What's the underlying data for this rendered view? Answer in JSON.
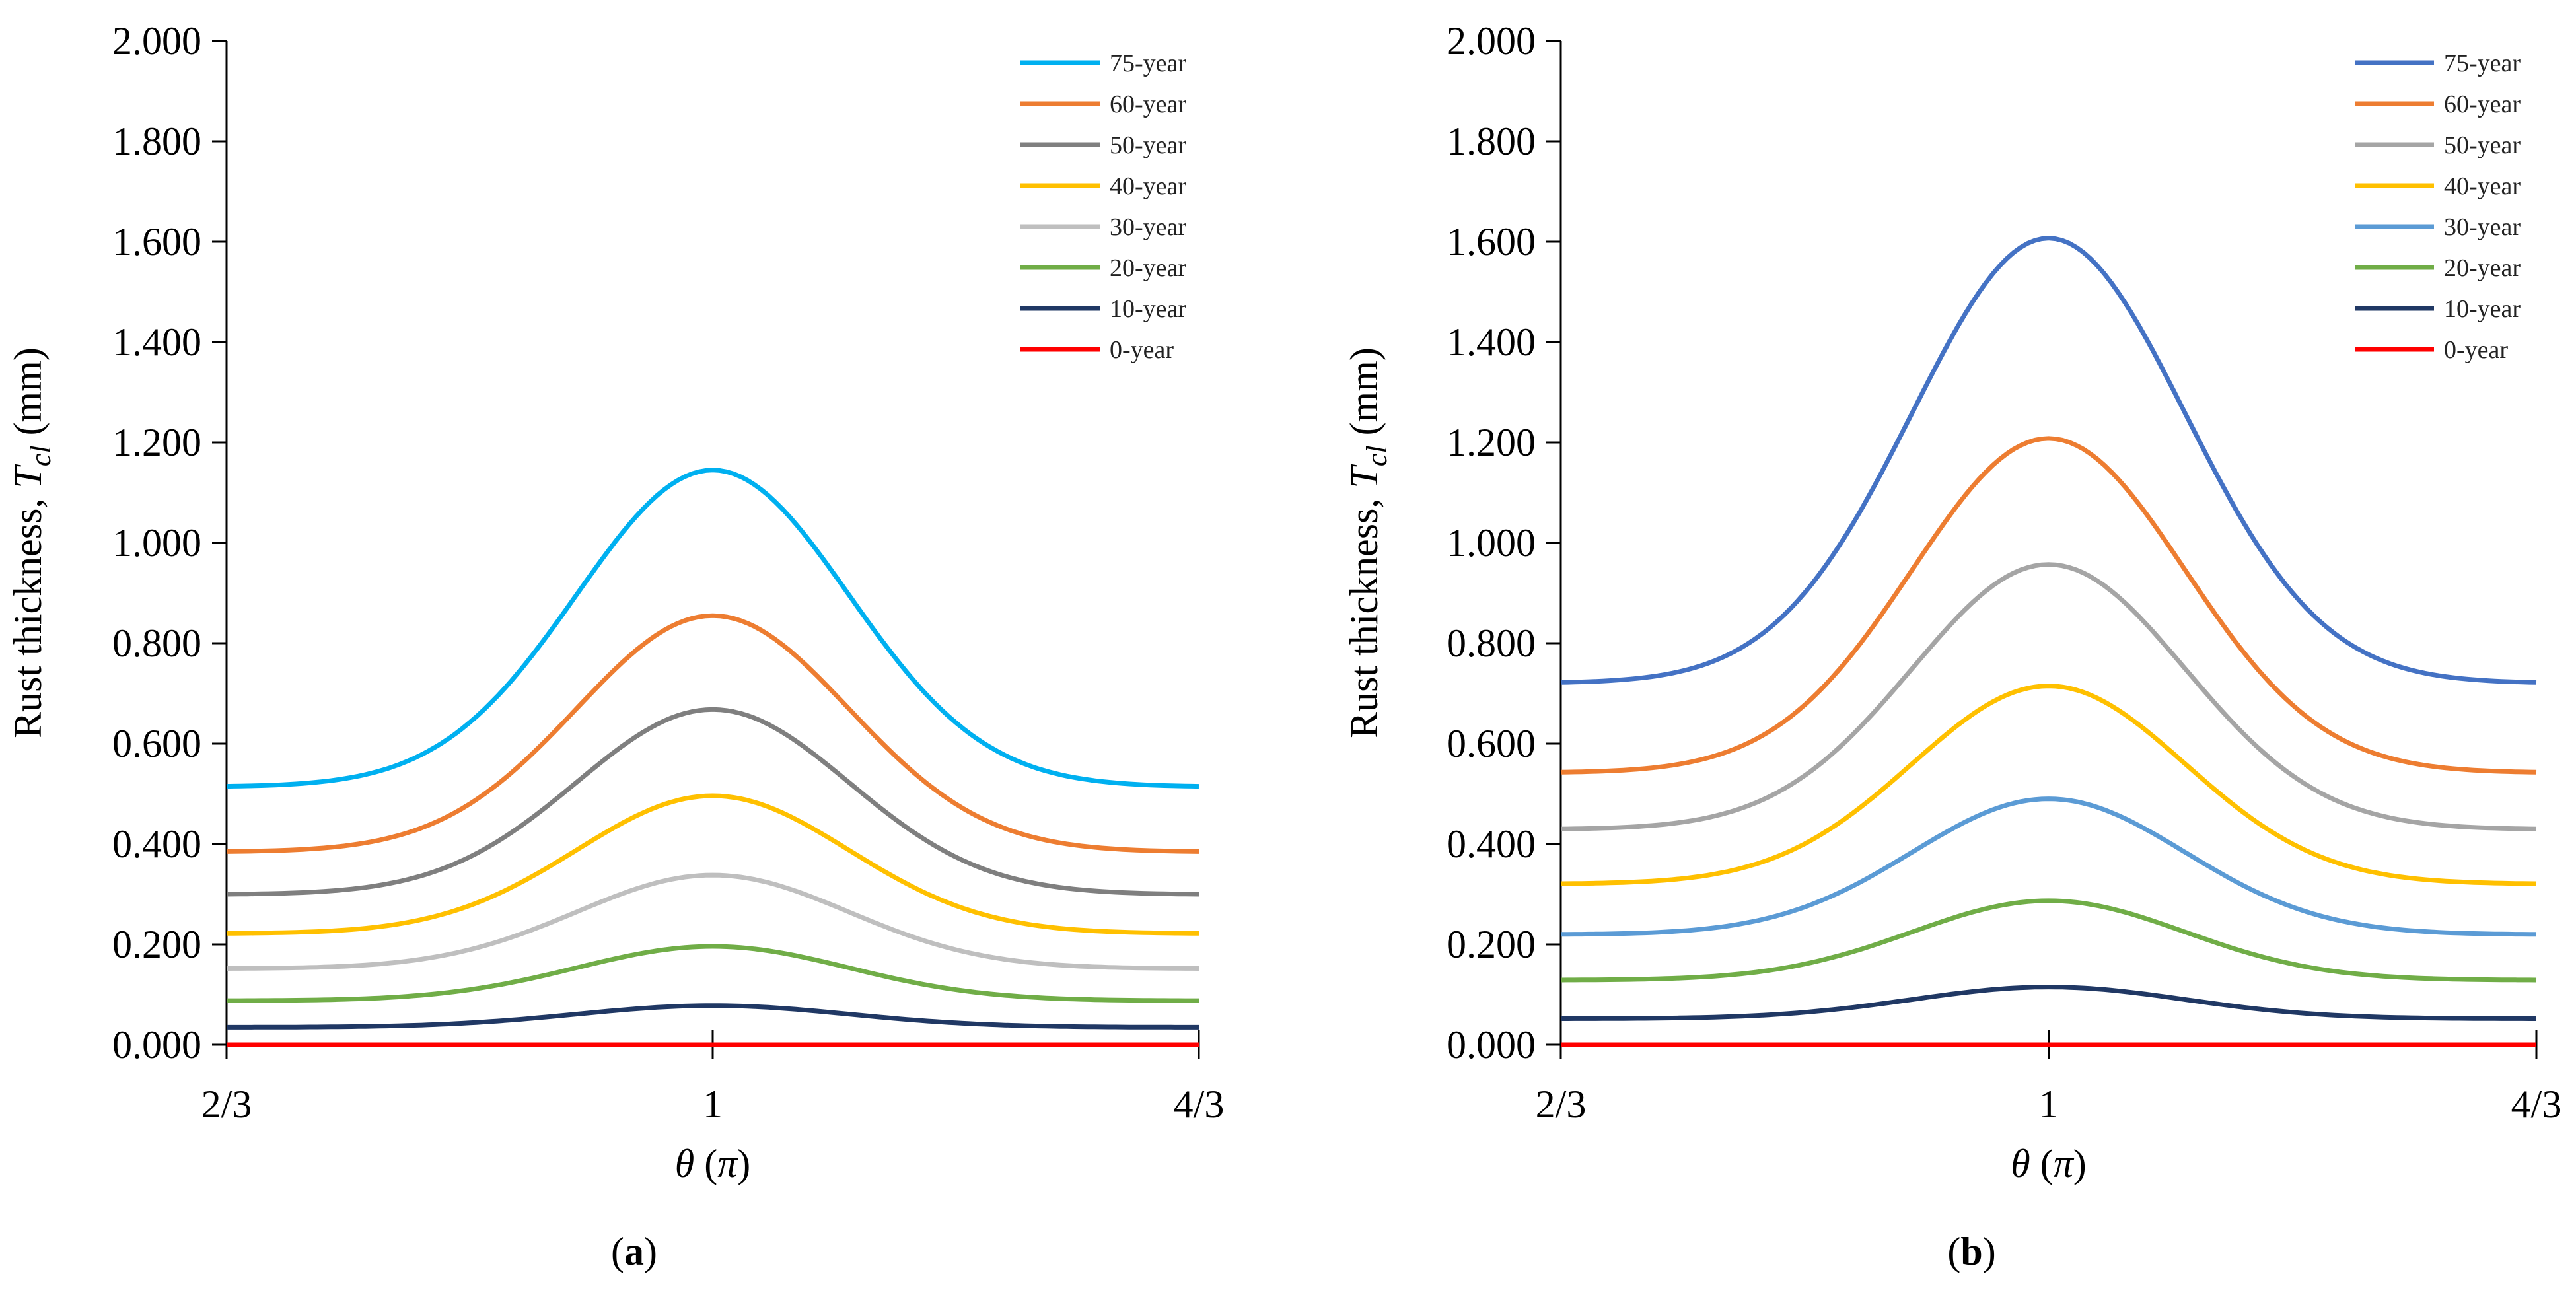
{
  "chart_data": [
    {
      "type": "line",
      "panel": "a",
      "ylabel_prefix": "Rust thickness, ",
      "ylabel_var": "T",
      "ylabel_sub": "cl",
      "ylabel_unit": " (mm)",
      "xlabel_var": "θ",
      "xlabel_unit": " (π)",
      "ylim": [
        0,
        2
      ],
      "yticks": [
        "0.000",
        "0.200",
        "0.400",
        "0.600",
        "0.800",
        "1.000",
        "1.200",
        "1.400",
        "1.600",
        "1.800",
        "2.000"
      ],
      "xticks": [
        "2/3",
        "1",
        "4/3"
      ],
      "series": [
        {
          "name": "75-year",
          "color": "#00B0F0",
          "min": 0.515,
          "max": 1.145
        },
        {
          "name": "60-year",
          "color": "#ED7D31",
          "min": 0.385,
          "max": 0.855
        },
        {
          "name": "50-year",
          "color": "#7F7F7F",
          "min": 0.3,
          "max": 0.668
        },
        {
          "name": "40-year",
          "color": "#FFC000",
          "min": 0.222,
          "max": 0.496
        },
        {
          "name": "30-year",
          "color": "#BFBFBF",
          "min": 0.152,
          "max": 0.338
        },
        {
          "name": "20-year",
          "color": "#70AD47",
          "min": 0.088,
          "max": 0.196
        },
        {
          "name": "10-year",
          "color": "#203864",
          "min": 0.035,
          "max": 0.078
        },
        {
          "name": "0-year",
          "color": "#FF0000",
          "min": 0.0,
          "max": 0.0
        }
      ]
    },
    {
      "type": "line",
      "panel": "b",
      "ylabel_prefix": "Rust thickness, ",
      "ylabel_var": "T",
      "ylabel_sub": "cl",
      "ylabel_unit": " (mm)",
      "xlabel_var": "θ",
      "xlabel_unit": " (π)",
      "ylim": [
        0,
        2
      ],
      "yticks": [
        "0.000",
        "0.200",
        "0.400",
        "0.600",
        "0.800",
        "1.000",
        "1.200",
        "1.400",
        "1.600",
        "1.800",
        "2.000"
      ],
      "xticks": [
        "2/3",
        "1",
        "4/3"
      ],
      "series": [
        {
          "name": "75-year",
          "color": "#4472C4",
          "min": 0.722,
          "max": 1.607
        },
        {
          "name": "60-year",
          "color": "#ED7D31",
          "min": 0.543,
          "max": 1.208
        },
        {
          "name": "50-year",
          "color": "#A5A5A5",
          "min": 0.43,
          "max": 0.957
        },
        {
          "name": "40-year",
          "color": "#FFC000",
          "min": 0.321,
          "max": 0.715
        },
        {
          "name": "30-year",
          "color": "#5B9BD5",
          "min": 0.22,
          "max": 0.49
        },
        {
          "name": "20-year",
          "color": "#70AD47",
          "min": 0.129,
          "max": 0.287
        },
        {
          "name": "10-year",
          "color": "#203864",
          "min": 0.052,
          "max": 0.115
        },
        {
          "name": "0-year",
          "color": "#FF0000",
          "min": 0.0,
          "max": 0.0
        }
      ]
    }
  ]
}
